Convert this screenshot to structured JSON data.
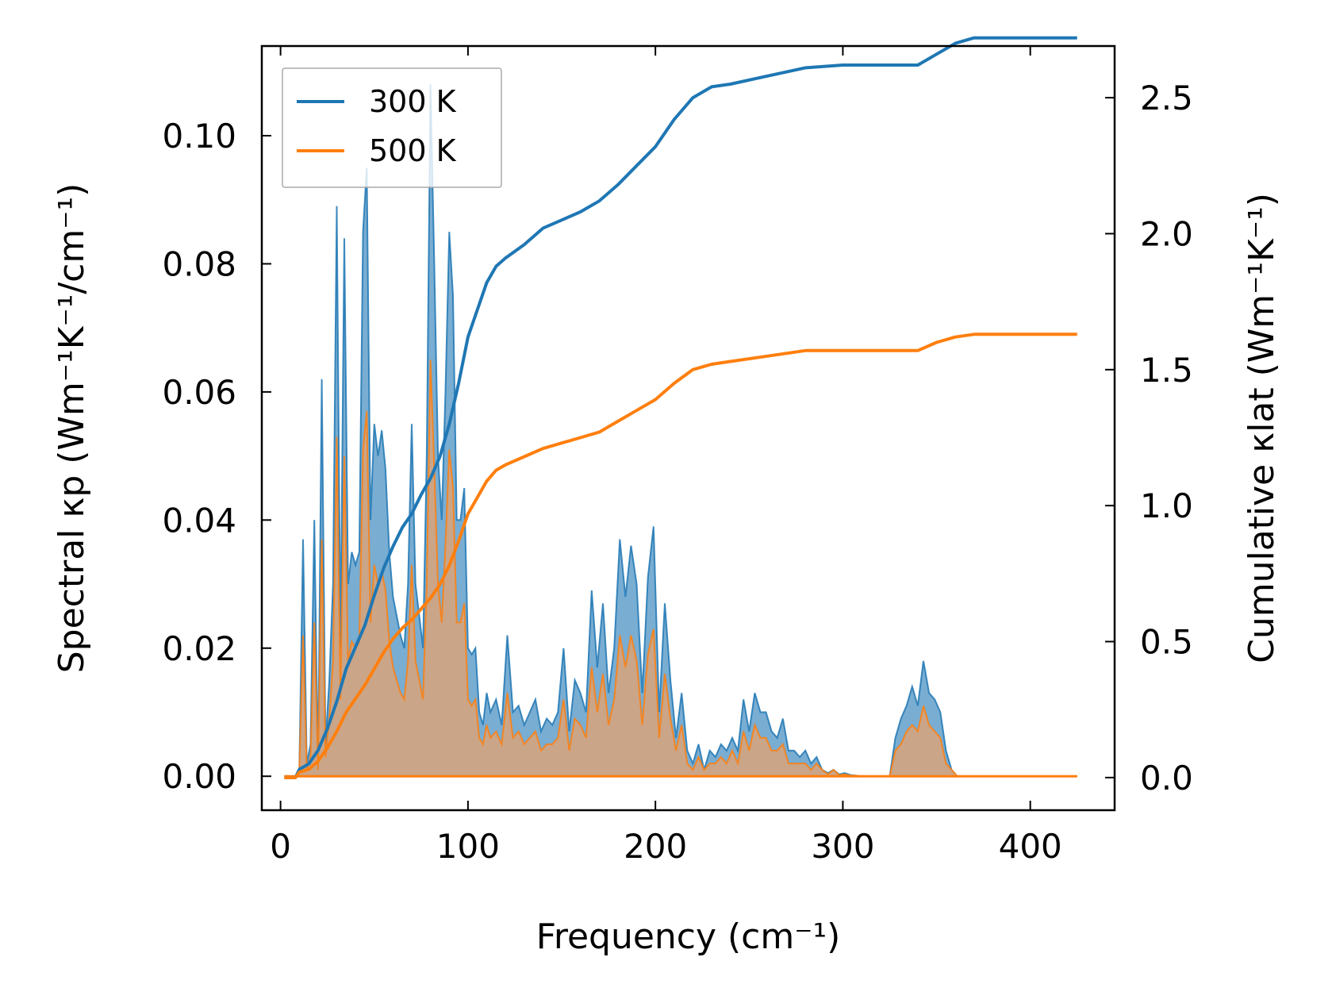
{
  "chart_data": {
    "type": "line",
    "title": "",
    "xlabel": "Frequency (cm⁻¹)",
    "ylabel_left": "Spectral κp (Wm⁻¹K⁻¹/cm⁻¹)",
    "ylabel_right": "Cumulative κlat (Wm⁻¹K⁻¹)",
    "xlim": [
      -10,
      445
    ],
    "ylim_left": [
      -0.0053,
      0.114
    ],
    "ylim_right": [
      -0.12,
      2.69
    ],
    "xticks": [
      0,
      100,
      200,
      300,
      400
    ],
    "xtick_labels": [
      "0",
      "100",
      "200",
      "300",
      "400"
    ],
    "yticks_left": [
      0.0,
      0.02,
      0.04,
      0.06,
      0.08,
      0.1
    ],
    "ytick_labels_left": [
      "0.00",
      "0.02",
      "0.04",
      "0.06",
      "0.08",
      "0.10"
    ],
    "yticks_right": [
      0.0,
      0.5,
      1.0,
      1.5,
      2.0,
      2.5
    ],
    "ytick_labels_right": [
      "0.0",
      "0.5",
      "1.0",
      "1.5",
      "2.0",
      "2.5"
    ],
    "legend_position": "upper-left",
    "grid": false,
    "colors": {
      "300 K": "#1f77b4",
      "500 K": "#ff7f0e",
      "fill_300": "#1f77b4",
      "fill_500": "#d9a37a"
    },
    "spectral_x": [
      2,
      8,
      10,
      12,
      14,
      16,
      18,
      20,
      22,
      24,
      26,
      28,
      30,
      32,
      34,
      36,
      38,
      40,
      42,
      44,
      46,
      48,
      50,
      52,
      54,
      56,
      58,
      60,
      62,
      64,
      66,
      68,
      70,
      72,
      74,
      76,
      78,
      80,
      82,
      84,
      86,
      88,
      90,
      92,
      94,
      96,
      98,
      100,
      102,
      104,
      106,
      108,
      110,
      112,
      115,
      118,
      121,
      124,
      127,
      130,
      133,
      136,
      139,
      142,
      145,
      148,
      151,
      154,
      157,
      160,
      163,
      166,
      169,
      172,
      175,
      178,
      181,
      184,
      187,
      190,
      193,
      196,
      199,
      202,
      205,
      208,
      211,
      214,
      217,
      220,
      223,
      226,
      229,
      232,
      235,
      238,
      241,
      244,
      247,
      250,
      253,
      256,
      259,
      262,
      265,
      268,
      271,
      274,
      277,
      280,
      283,
      286,
      289,
      292,
      295,
      298,
      301,
      304,
      307,
      310,
      313,
      316,
      319,
      322,
      325,
      328,
      331,
      334,
      337,
      340,
      343,
      346,
      349,
      352,
      355,
      358,
      361,
      364,
      367,
      370,
      373,
      376,
      380,
      390,
      400,
      410,
      425
    ],
    "series": [
      {
        "name": "300 K",
        "spectral": [
          0,
          0,
          0.001,
          0.037,
          0.002,
          0.005,
          0.04,
          0.001,
          0.062,
          0.005,
          0.015,
          0.03,
          0.089,
          0.02,
          0.084,
          0.03,
          0.035,
          0.033,
          0.035,
          0.085,
          0.095,
          0.04,
          0.055,
          0.05,
          0.054,
          0.048,
          0.035,
          0.028,
          0.025,
          0.022,
          0.02,
          0.03,
          0.055,
          0.03,
          0.025,
          0.02,
          0.05,
          0.108,
          0.08,
          0.05,
          0.04,
          0.06,
          0.085,
          0.075,
          0.04,
          0.04,
          0.045,
          0.02,
          0.019,
          0.02,
          0.01,
          0.008,
          0.013,
          0.01,
          0.012,
          0.008,
          0.022,
          0.01,
          0.011,
          0.008,
          0.01,
          0.012,
          0.007,
          0.009,
          0.008,
          0.01,
          0.02,
          0.007,
          0.015,
          0.013,
          0.01,
          0.029,
          0.017,
          0.027,
          0.013,
          0.02,
          0.037,
          0.028,
          0.036,
          0.03,
          0.013,
          0.031,
          0.039,
          0.01,
          0.027,
          0.015,
          0.006,
          0.013,
          0.004,
          0.002,
          0.005,
          0.001,
          0.004,
          0.003,
          0.005,
          0.004,
          0.006,
          0.004,
          0.012,
          0.007,
          0.013,
          0.01,
          0.01,
          0.007,
          0.006,
          0.009,
          0.004,
          0.004,
          0.003,
          0.004,
          0.002,
          0.003,
          0.001,
          0.0005,
          0.001,
          0.0003,
          0.0005,
          0.0002,
          0.0001,
          0,
          0,
          0,
          0,
          0,
          0,
          0.006,
          0.009,
          0.011,
          0.014,
          0.011,
          0.018,
          0.013,
          0.012,
          0.01,
          0.004,
          0.001,
          0,
          0,
          0,
          0,
          0,
          0,
          0,
          0,
          0,
          0,
          0
        ],
        "cumulative_x": [
          2,
          8,
          10,
          15,
          20,
          25,
          30,
          35,
          40,
          45,
          50,
          55,
          60,
          65,
          70,
          75,
          80,
          85,
          90,
          95,
          100,
          105,
          110,
          115,
          120,
          130,
          140,
          150,
          160,
          170,
          180,
          190,
          200,
          210,
          220,
          230,
          240,
          260,
          280,
          300,
          320,
          340,
          350,
          360,
          370,
          375,
          425
        ],
        "cumulative": [
          0,
          0,
          0.03,
          0.05,
          0.1,
          0.18,
          0.28,
          0.4,
          0.48,
          0.56,
          0.67,
          0.77,
          0.85,
          0.92,
          0.97,
          1.04,
          1.1,
          1.18,
          1.3,
          1.45,
          1.62,
          1.72,
          1.82,
          1.88,
          1.91,
          1.96,
          2.02,
          2.05,
          2.08,
          2.12,
          2.18,
          2.25,
          2.32,
          2.42,
          2.5,
          2.54,
          2.55,
          2.58,
          2.61,
          2.62,
          2.62,
          2.62,
          2.66,
          2.7,
          2.72,
          2.72,
          2.72
        ]
      },
      {
        "name": "500 K",
        "spectral": [
          0,
          0,
          0.001,
          0.022,
          0.001,
          0.003,
          0.024,
          0.001,
          0.037,
          0.003,
          0.009,
          0.018,
          0.053,
          0.012,
          0.05,
          0.018,
          0.021,
          0.02,
          0.021,
          0.051,
          0.057,
          0.024,
          0.033,
          0.03,
          0.032,
          0.029,
          0.021,
          0.017,
          0.015,
          0.013,
          0.012,
          0.018,
          0.033,
          0.018,
          0.015,
          0.012,
          0.03,
          0.065,
          0.048,
          0.03,
          0.024,
          0.036,
          0.051,
          0.045,
          0.024,
          0.024,
          0.027,
          0.012,
          0.011,
          0.012,
          0.006,
          0.005,
          0.008,
          0.006,
          0.007,
          0.005,
          0.013,
          0.006,
          0.007,
          0.005,
          0.006,
          0.007,
          0.004,
          0.005,
          0.005,
          0.006,
          0.012,
          0.004,
          0.009,
          0.008,
          0.006,
          0.017,
          0.01,
          0.016,
          0.008,
          0.012,
          0.022,
          0.017,
          0.022,
          0.018,
          0.008,
          0.019,
          0.023,
          0.006,
          0.016,
          0.009,
          0.004,
          0.008,
          0.002,
          0.001,
          0.003,
          0.001,
          0.002,
          0.002,
          0.003,
          0.002,
          0.004,
          0.002,
          0.007,
          0.004,
          0.008,
          0.006,
          0.006,
          0.004,
          0.004,
          0.005,
          0.002,
          0.002,
          0.002,
          0.002,
          0.001,
          0.002,
          0.001,
          0.0003,
          0.001,
          0.0002,
          0.0003,
          0.0001,
          0.0001,
          0,
          0,
          0,
          0,
          0,
          0,
          0.004,
          0.005,
          0.007,
          0.008,
          0.007,
          0.011,
          0.008,
          0.007,
          0.006,
          0.002,
          0.001,
          0,
          0,
          0,
          0,
          0,
          0,
          0,
          0,
          0,
          0,
          0
        ],
        "cumulative_x": [
          2,
          8,
          10,
          15,
          20,
          25,
          30,
          35,
          40,
          45,
          50,
          55,
          60,
          65,
          70,
          75,
          80,
          85,
          90,
          95,
          100,
          105,
          110,
          115,
          120,
          130,
          140,
          150,
          160,
          170,
          180,
          190,
          200,
          210,
          220,
          230,
          240,
          260,
          280,
          300,
          320,
          340,
          350,
          360,
          370,
          375,
          425
        ],
        "cumulative": [
          0,
          0,
          0.02,
          0.03,
          0.06,
          0.11,
          0.17,
          0.24,
          0.29,
          0.34,
          0.4,
          0.46,
          0.51,
          0.55,
          0.58,
          0.62,
          0.66,
          0.71,
          0.78,
          0.87,
          0.97,
          1.03,
          1.09,
          1.13,
          1.15,
          1.18,
          1.21,
          1.23,
          1.25,
          1.27,
          1.31,
          1.35,
          1.39,
          1.45,
          1.5,
          1.52,
          1.53,
          1.55,
          1.57,
          1.57,
          1.57,
          1.57,
          1.6,
          1.62,
          1.63,
          1.63,
          1.63
        ]
      }
    ]
  }
}
